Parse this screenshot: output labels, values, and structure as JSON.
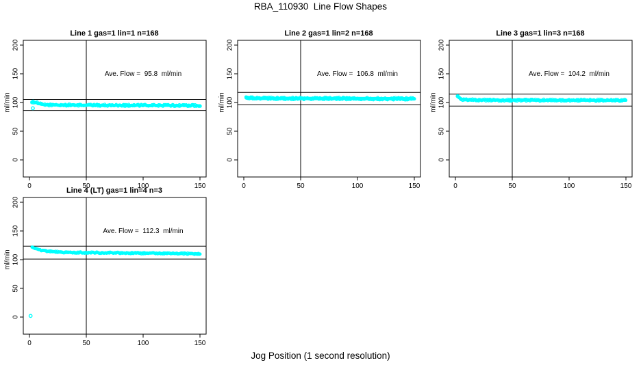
{
  "window": {
    "background": "#FFFFFF"
  },
  "figure": {
    "title": "RBA_110930  Line Flow Shapes",
    "xlabel": "Jog Position (1 second resolution)"
  },
  "chart_data": {
    "type": "scatter",
    "marker": "open-circle",
    "point_color": "#00FFFF",
    "axis_color": "#000000",
    "background": "#FFFFFF",
    "ylabel": "ml/min",
    "xticks": [
      0,
      50,
      100,
      150
    ],
    "yticks": [
      0,
      50,
      100,
      150,
      200
    ],
    "xlim": [
      0,
      155
    ],
    "ylim": [
      -30,
      210
    ],
    "grid": false,
    "legend": "none",
    "tolerance_band_pct": 10,
    "annotation_anchor": {
      "x": 100,
      "y": 150
    },
    "panels": [
      {
        "title": "Line 1 gas=1 lin=1 n=168",
        "annotation": "Ave. Flow =  95.8  ml/min",
        "ave_flow_ml_min": 95.8,
        "n_traces": 168,
        "hlines": [
          105.4,
          86.2
        ],
        "vline": 50,
        "band_profile": [
          [
            2,
            101
          ],
          [
            4,
            100.8
          ],
          [
            6,
            100
          ],
          [
            9,
            97.5
          ],
          [
            13,
            96
          ],
          [
            20,
            95.6
          ],
          [
            50,
            95.3
          ],
          [
            100,
            95
          ],
          [
            150,
            94.7
          ]
        ],
        "band_halfwidth": 1.5,
        "outliers": [
          [
            3,
            90
          ]
        ]
      },
      {
        "title": "Line 2 gas=1 lin=2 n=168",
        "annotation": "Ave. Flow =  106.8  ml/min",
        "ave_flow_ml_min": 106.8,
        "n_traces": 168,
        "hlines": [
          117.5,
          96.1
        ],
        "vline": 50,
        "band_profile": [
          [
            2,
            109.5
          ],
          [
            5,
            108
          ],
          [
            10,
            107.4
          ],
          [
            30,
            107.1
          ],
          [
            60,
            107
          ],
          [
            100,
            106.9
          ],
          [
            150,
            106.4
          ]
        ],
        "band_halfwidth": 2.0,
        "outliers": []
      },
      {
        "title": "Line 3 gas=1 lin=3 n=168",
        "annotation": "Ave. Flow =  104.2  ml/min",
        "ave_flow_ml_min": 104.2,
        "n_traces": 168,
        "hlines": [
          114.6,
          93.8
        ],
        "vline": 50,
        "band_profile": [
          [
            2,
            110.8
          ],
          [
            4,
            108
          ],
          [
            6,
            105.5
          ],
          [
            10,
            104.6
          ],
          [
            20,
            104.2
          ],
          [
            60,
            104
          ],
          [
            100,
            103.9
          ],
          [
            150,
            103.7
          ]
        ],
        "band_halfwidth": 1.6,
        "outliers": [
          [
            2,
            111
          ]
        ]
      },
      {
        "title": "Line 4 (LT) gas=1 lin=4 n=3",
        "annotation": "Ave. Flow =  112.3  ml/min",
        "ave_flow_ml_min": 112.3,
        "n_traces": 3,
        "hlines": [
          123.5,
          101.1
        ],
        "vline": 50,
        "band_profile": [
          [
            2,
            121.8
          ],
          [
            4,
            120.5
          ],
          [
            7,
            118
          ],
          [
            11,
            116
          ],
          [
            16,
            114.5
          ],
          [
            24,
            113.3
          ],
          [
            35,
            112.7
          ],
          [
            50,
            112.3
          ],
          [
            75,
            111.8
          ],
          [
            110,
            111
          ],
          [
            150,
            110.3
          ]
        ],
        "band_halfwidth": 1.1,
        "outliers": [
          [
            1,
            2
          ]
        ]
      }
    ]
  }
}
